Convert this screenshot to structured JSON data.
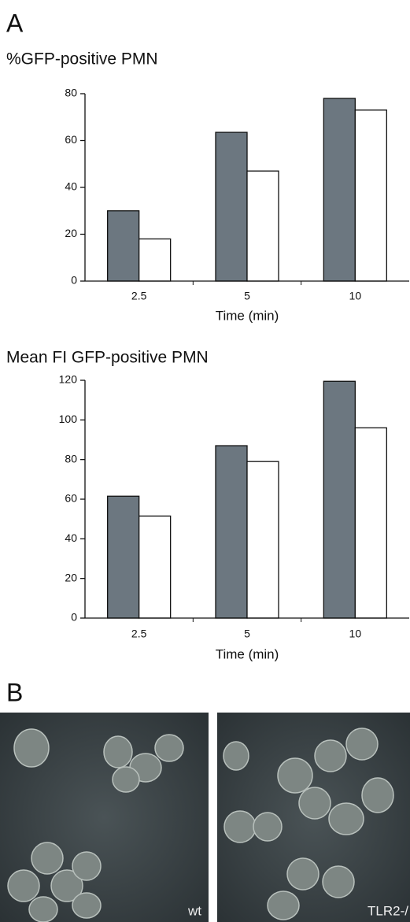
{
  "panels": {
    "a": "A",
    "b": "B"
  },
  "images": [
    {
      "label": "wt"
    },
    {
      "label": "TLR2-/"
    }
  ],
  "chart_data": [
    {
      "type": "bar",
      "title": "%GFP-positive PMN",
      "x_label": "Time (min)",
      "categories": [
        "2.5",
        "5",
        "10"
      ],
      "series": [
        {
          "color": "#6c7780",
          "values": [
            30,
            63.5,
            78
          ]
        },
        {
          "color": "#ffffff",
          "values": [
            18,
            47,
            73
          ]
        }
      ],
      "ylim": [
        0,
        80
      ],
      "yticks": [
        0,
        20,
        40,
        60,
        80
      ]
    },
    {
      "type": "bar",
      "title": "Mean FI GFP-positive PMN",
      "x_label": "Time (min)",
      "categories": [
        "2.5",
        "5",
        "10"
      ],
      "series": [
        {
          "color": "#6c7780",
          "values": [
            61.5,
            87,
            119.5
          ]
        },
        {
          "color": "#ffffff",
          "values": [
            51.5,
            79,
            96
          ]
        }
      ],
      "ylim": [
        0,
        120
      ],
      "yticks": [
        0,
        20,
        40,
        60,
        80,
        100,
        120
      ]
    }
  ]
}
